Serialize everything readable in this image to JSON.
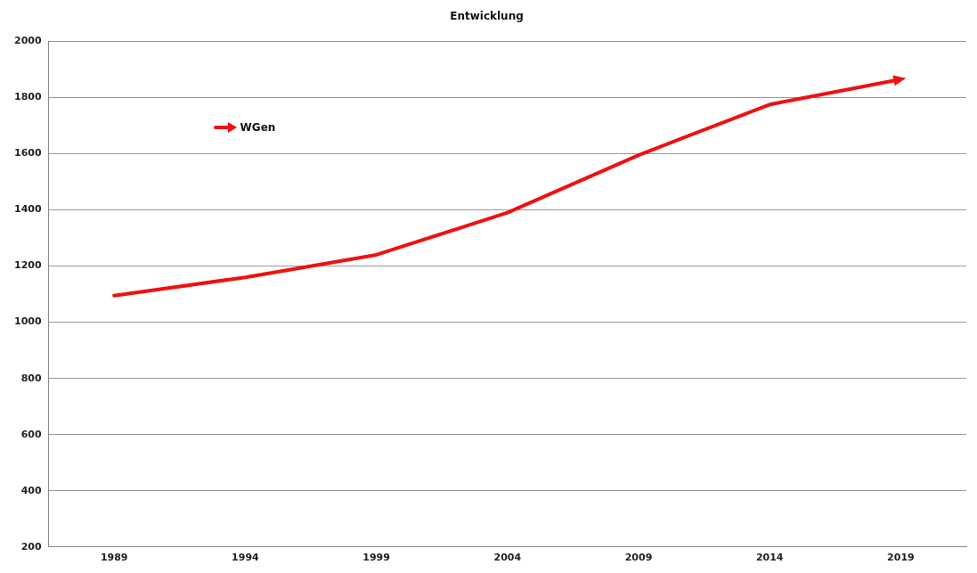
{
  "chart_data": {
    "type": "line",
    "title": "Entwicklung",
    "categories": [
      "1989",
      "1994",
      "1999",
      "2004",
      "2009",
      "2014",
      "2019"
    ],
    "series": [
      {
        "name": "WGen",
        "color": "#ee1111",
        "values": [
          1095,
          1160,
          1240,
          1390,
          1595,
          1775,
          1865
        ]
      }
    ],
    "ylim": [
      200,
      2000
    ],
    "yticks": [
      200,
      400,
      600,
      800,
      1000,
      1200,
      1400,
      1600,
      1800,
      2000
    ],
    "grid": "y",
    "legend": "top left",
    "marker": "none",
    "line_style": "solid"
  }
}
